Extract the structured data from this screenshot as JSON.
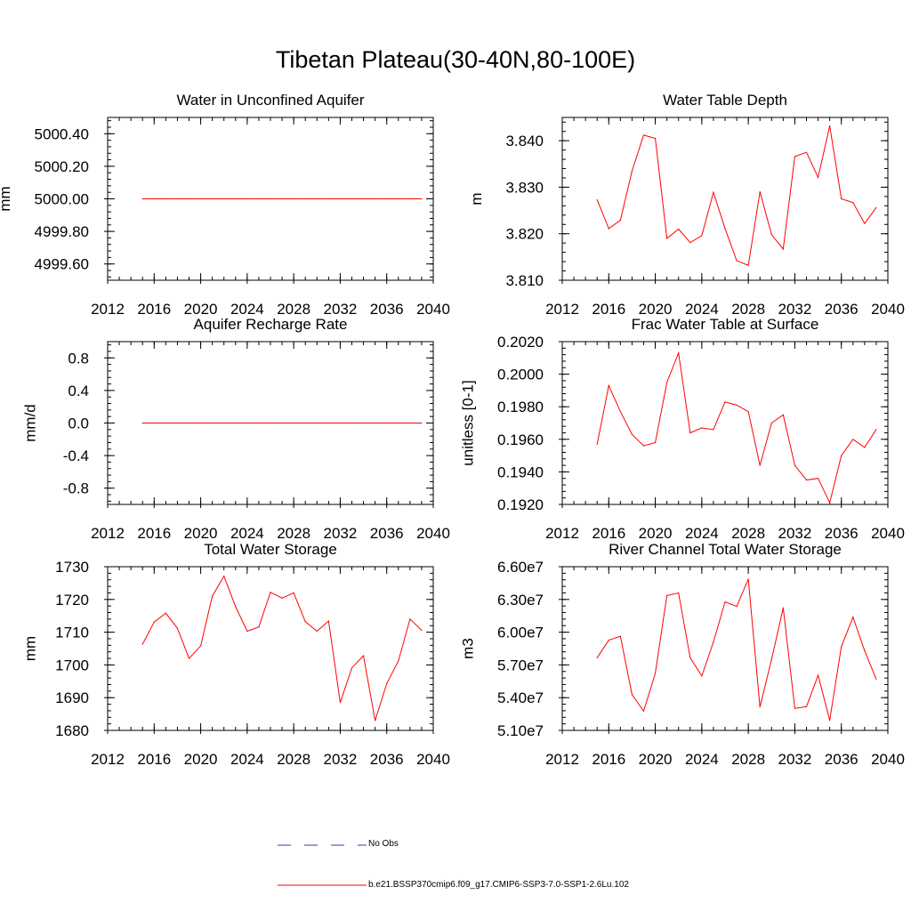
{
  "figure": {
    "title": "Tibetan Plateau(30-40N,80-100E)"
  },
  "colors": {
    "model_line": "#ff0000",
    "obs_line": "#3a3aa8",
    "axis": "#000000"
  },
  "legend": {
    "obs_label": "No Obs",
    "model_label": "b.e21.BSSP370cmip6.f09_g17.CMIP6-SSP3-7.0-SSP1-2.6Lu.102"
  },
  "chart_data": [
    {
      "type": "line",
      "title": "Water in Unconfined Aquifer",
      "ylabel": "mm",
      "xlabel": "",
      "xlim": [
        2012,
        2040
      ],
      "xticks": [
        2012,
        2016,
        2020,
        2024,
        2028,
        2032,
        2036,
        2040
      ],
      "xtick_labels": [
        "2012",
        "2016",
        "2020",
        "2024",
        "2028",
        "2032",
        "2036",
        "2040"
      ],
      "ylim": [
        4999.5,
        5000.5
      ],
      "yticks": [
        4999.6,
        4999.8,
        5000.0,
        5000.2,
        5000.4
      ],
      "ytick_labels": [
        "4999.60",
        "4999.80",
        "5000.00",
        "5000.20",
        "5000.40"
      ],
      "x": [
        2015,
        2016,
        2017,
        2018,
        2019,
        2020,
        2021,
        2022,
        2023,
        2024,
        2025,
        2026,
        2027,
        2028,
        2029,
        2030,
        2031,
        2032,
        2033,
        2034,
        2035,
        2036,
        2037,
        2038,
        2039
      ],
      "series": [
        {
          "values": [
            5000.0,
            5000.0,
            5000.0,
            5000.0,
            5000.0,
            5000.0,
            5000.0,
            5000.0,
            5000.0,
            5000.0,
            5000.0,
            5000.0,
            5000.0,
            5000.0,
            5000.0,
            5000.0,
            5000.0,
            5000.0,
            5000.0,
            5000.0,
            5000.0,
            5000.0,
            5000.0,
            5000.0,
            5000.0
          ]
        }
      ]
    },
    {
      "type": "line",
      "title": "Water Table Depth",
      "ylabel": "m",
      "xlabel": "",
      "xlim": [
        2012,
        2040
      ],
      "xticks": [
        2012,
        2016,
        2020,
        2024,
        2028,
        2032,
        2036,
        2040
      ],
      "xtick_labels": [
        "2012",
        "2016",
        "2020",
        "2024",
        "2028",
        "2032",
        "2036",
        "2040"
      ],
      "ylim": [
        3.81,
        3.845
      ],
      "yticks": [
        3.81,
        3.82,
        3.83,
        3.84
      ],
      "ytick_labels": [
        "3.810",
        "3.820",
        "3.830",
        "3.840"
      ],
      "x": [
        2015,
        2016,
        2017,
        2018,
        2019,
        2020,
        2021,
        2022,
        2023,
        2024,
        2025,
        2026,
        2027,
        2028,
        2029,
        2030,
        2031,
        2032,
        2033,
        2034,
        2035,
        2036,
        2037,
        2038,
        2039
      ],
      "series": [
        {
          "values": [
            3.8273,
            3.8211,
            3.8229,
            3.8335,
            3.8412,
            3.8405,
            3.819,
            3.821,
            3.8181,
            3.8196,
            3.8289,
            3.8211,
            3.8142,
            3.8132,
            3.829,
            3.8198,
            3.8167,
            3.8366,
            3.8375,
            3.8321,
            3.8432,
            3.8275,
            3.8267,
            3.8222,
            3.8256
          ]
        }
      ]
    },
    {
      "type": "line",
      "title": "Aquifer Recharge Rate",
      "ylabel": "mm/d",
      "xlabel": "",
      "xlim": [
        2012,
        2040
      ],
      "xticks": [
        2012,
        2016,
        2020,
        2024,
        2028,
        2032,
        2036,
        2040
      ],
      "xtick_labels": [
        "2012",
        "2016",
        "2020",
        "2024",
        "2028",
        "2032",
        "2036",
        "2040"
      ],
      "ylim": [
        -1.0,
        1.0
      ],
      "yticks": [
        -0.8,
        -0.4,
        0.0,
        0.4,
        0.8
      ],
      "ytick_labels": [
        "-0.8",
        "-0.4",
        "0.0",
        "0.4",
        "0.8"
      ],
      "x": [
        2015,
        2016,
        2017,
        2018,
        2019,
        2020,
        2021,
        2022,
        2023,
        2024,
        2025,
        2026,
        2027,
        2028,
        2029,
        2030,
        2031,
        2032,
        2033,
        2034,
        2035,
        2036,
        2037,
        2038,
        2039
      ],
      "series": [
        {
          "values": [
            0,
            0,
            0,
            0,
            0,
            0,
            0,
            0,
            0,
            0,
            0,
            0,
            0,
            0,
            0,
            0,
            0,
            0,
            0,
            0,
            0,
            0,
            0,
            0,
            0
          ]
        }
      ]
    },
    {
      "type": "line",
      "title": "Frac Water Table at Surface",
      "ylabel": "unitless [0-1]",
      "xlabel": "",
      "xlim": [
        2012,
        2040
      ],
      "xticks": [
        2012,
        2016,
        2020,
        2024,
        2028,
        2032,
        2036,
        2040
      ],
      "xtick_labels": [
        "2012",
        "2016",
        "2020",
        "2024",
        "2028",
        "2032",
        "2036",
        "2040"
      ],
      "ylim": [
        0.192,
        0.202
      ],
      "yticks": [
        0.192,
        0.194,
        0.196,
        0.198,
        0.2,
        0.202
      ],
      "ytick_labels": [
        "0.1920",
        "0.1940",
        "0.1960",
        "0.1980",
        "0.2000",
        "0.2020"
      ],
      "x": [
        2015,
        2016,
        2017,
        2018,
        2019,
        2020,
        2021,
        2022,
        2023,
        2024,
        2025,
        2026,
        2027,
        2028,
        2029,
        2030,
        2031,
        2032,
        2033,
        2034,
        2035,
        2036,
        2037,
        2038,
        2039
      ],
      "series": [
        {
          "values": [
            0.1957,
            0.1993,
            0.1977,
            0.1963,
            0.1956,
            0.1958,
            0.1995,
            0.2013,
            0.1964,
            0.1967,
            0.1966,
            0.1983,
            0.1981,
            0.1977,
            0.1944,
            0.197,
            0.1975,
            0.1944,
            0.1935,
            0.1936,
            0.1921,
            0.195,
            0.196,
            0.1955,
            0.1966
          ]
        }
      ]
    },
    {
      "type": "line",
      "title": "Total Water Storage",
      "ylabel": "mm",
      "xlabel": "",
      "xlim": [
        2012,
        2040
      ],
      "xticks": [
        2012,
        2016,
        2020,
        2024,
        2028,
        2032,
        2036,
        2040
      ],
      "xtick_labels": [
        "2012",
        "2016",
        "2020",
        "2024",
        "2028",
        "2032",
        "2036",
        "2040"
      ],
      "ylim": [
        1680,
        1730
      ],
      "yticks": [
        1680,
        1690,
        1700,
        1710,
        1720,
        1730
      ],
      "ytick_labels": [
        "1680",
        "1690",
        "1700",
        "1710",
        "1720",
        "1730"
      ],
      "x": [
        2015,
        2016,
        2017,
        2018,
        2019,
        2020,
        2021,
        2022,
        2023,
        2024,
        2025,
        2026,
        2027,
        2028,
        2029,
        2030,
        2031,
        2032,
        2033,
        2034,
        2035,
        2036,
        2037,
        2038,
        2039
      ],
      "series": [
        {
          "values": [
            1706.3,
            1713.1,
            1715.8,
            1711.2,
            1702.0,
            1705.8,
            1721.0,
            1727.1,
            1717.8,
            1710.3,
            1711.6,
            1722.2,
            1720.4,
            1722.0,
            1713.2,
            1710.3,
            1713.4,
            1688.5,
            1699.1,
            1702.8,
            1683.0,
            1694.3,
            1701.2,
            1714.0,
            1710.6
          ]
        }
      ]
    },
    {
      "type": "line",
      "title": "River Channel Total Water Storage",
      "ylabel": "m3",
      "xlabel": "",
      "xlim": [
        2012,
        2040
      ],
      "xticks": [
        2012,
        2016,
        2020,
        2024,
        2028,
        2032,
        2036,
        2040
      ],
      "xtick_labels": [
        "2012",
        "2016",
        "2020",
        "2024",
        "2028",
        "2032",
        "2036",
        "2040"
      ],
      "ylim": [
        51000000,
        66000000
      ],
      "yticks": [
        51000000,
        54000000,
        57000000,
        60000000,
        63000000,
        66000000
      ],
      "ytick_labels": [
        "5.10e7",
        "5.40e7",
        "5.70e7",
        "6.00e7",
        "6.30e7",
        "6.60e7"
      ],
      "x": [
        2015,
        2016,
        2017,
        2018,
        2019,
        2020,
        2021,
        2022,
        2023,
        2024,
        2025,
        2026,
        2027,
        2028,
        2029,
        2030,
        2031,
        2032,
        2033,
        2034,
        2035,
        2036,
        2037,
        2038,
        2039
      ],
      "series": [
        {
          "values": [
            57650000,
            59270000,
            59630000,
            54280000,
            52770000,
            56230000,
            63360000,
            63590000,
            57660000,
            55990000,
            59100000,
            62780000,
            62360000,
            64860000,
            53150000,
            57510000,
            62230000,
            53020000,
            53180000,
            56060000,
            51930000,
            58670000,
            61380000,
            58300000,
            55700000
          ]
        }
      ]
    }
  ]
}
